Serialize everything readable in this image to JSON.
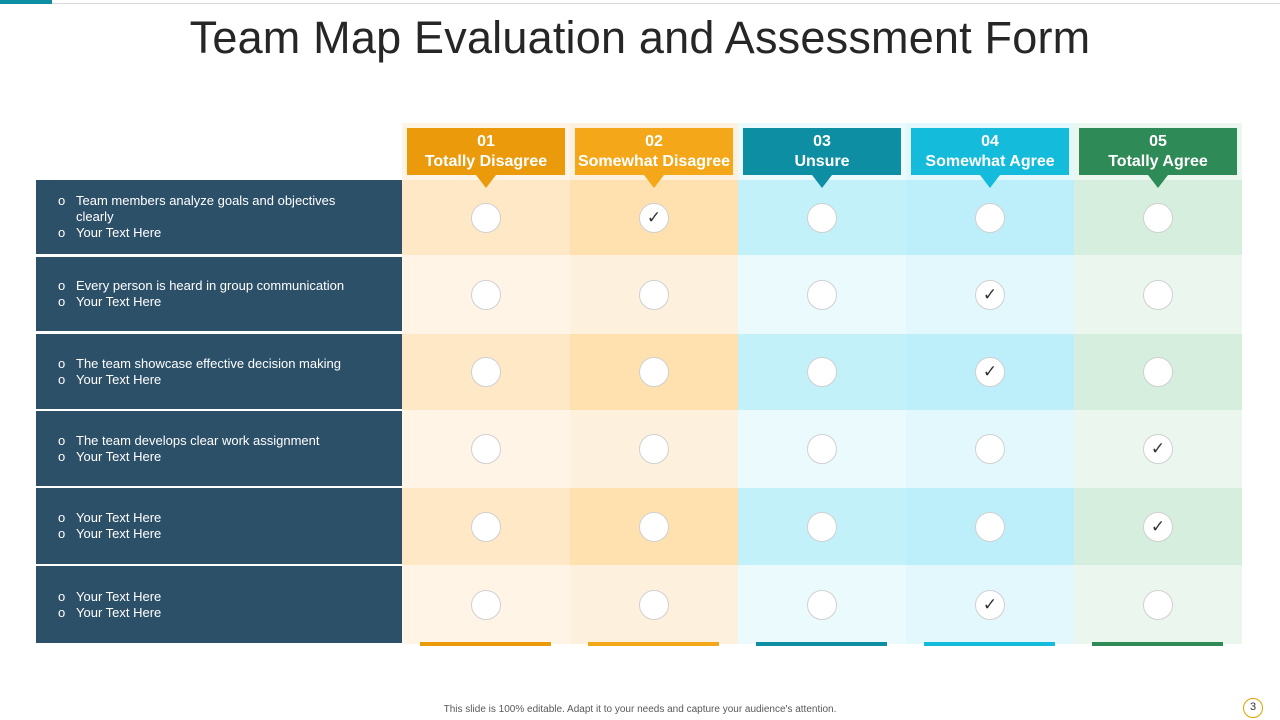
{
  "title": "Team Map Evaluation and Assessment Form",
  "columns": [
    {
      "num": "01",
      "label": "Totally Disagree",
      "color": "#ea9a0a",
      "light": "#fff4e6",
      "dark": "#ffe8c6"
    },
    {
      "num": "02",
      "label": "Somewhat Disagree",
      "color": "#f3a719",
      "light": "#fdf0dc",
      "dark": "#ffe1b0"
    },
    {
      "num": "03",
      "label": "Unsure",
      "color": "#0e8ea3",
      "light": "#eafafd",
      "dark": "#c2f1fa"
    },
    {
      "num": "04",
      "label": "Somewhat Agree",
      "color": "#15bbdb",
      "light": "#e3f8fd",
      "dark": "#bdeffa"
    },
    {
      "num": "05",
      "label": "Totally Agree",
      "color": "#2e8b57",
      "light": "#ebf7ee",
      "dark": "#d5eede"
    }
  ],
  "rows": [
    {
      "lines": [
        "Team members analyze goals and objectives clearly",
        "Your Text Here"
      ],
      "selected": 1
    },
    {
      "lines": [
        "Every person is heard in group communication",
        "Your Text Here"
      ],
      "selected": 3
    },
    {
      "lines": [
        "The team showcase effective  decision making",
        "Your Text Here"
      ],
      "selected": 3
    },
    {
      "lines": [
        "The team develops clear work assignment",
        "Your Text Here"
      ],
      "selected": 4
    },
    {
      "lines": [
        "Your Text Here",
        "Your Text Here"
      ],
      "selected": 4
    },
    {
      "lines": [
        "Your Text Here",
        "Your Text Here"
      ],
      "selected": 3
    }
  ],
  "bullet_char": "o",
  "check_char": "✓",
  "footer": "This slide is 100% editable. Adapt it to your needs and capture your audience's attention.",
  "page_number": "3"
}
